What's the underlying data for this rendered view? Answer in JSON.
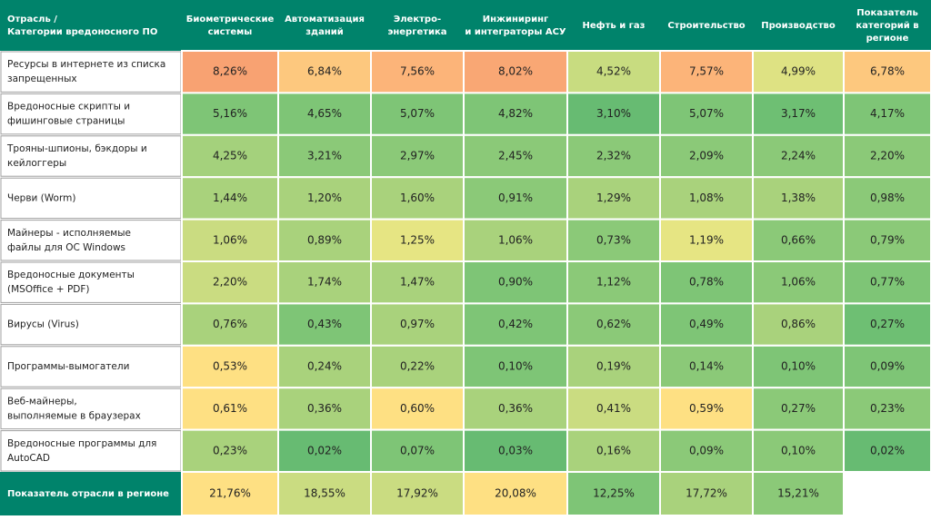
{
  "chart_data": {
    "type": "heatmap",
    "corner_header": [
      "Отрасль /",
      "Категории вредоносного ПО"
    ],
    "columns": [
      [
        "Биометрические",
        "системы"
      ],
      [
        "Автоматизация",
        "зданий"
      ],
      [
        "Электро-",
        "энергетика"
      ],
      [
        "Инжиниринг",
        "и интеграторы АСУ"
      ],
      [
        "Нефть и газ"
      ],
      [
        "Строительство"
      ],
      [
        "Производство"
      ],
      [
        "Показатель",
        "категорий в",
        "регионе"
      ]
    ],
    "rows": [
      {
        "label": [
          "Ресурсы в интернете из списка",
          "запрещенных"
        ],
        "values": [
          "8,26%",
          "6,84%",
          "7,56%",
          "8,02%",
          "4,52%",
          "7,57%",
          "4,99%",
          "6,78%"
        ],
        "colors": [
          "#f8a272",
          "#fdc87e",
          "#fcb479",
          "#f9a774",
          "#c8dc80",
          "#fcb479",
          "#dee283",
          "#fdc87e"
        ]
      },
      {
        "label": [
          "Вредоносные скрипты и",
          "фишинговые страницы"
        ],
        "values": [
          "5,16%",
          "4,65%",
          "5,07%",
          "4,82%",
          "3,10%",
          "5,07%",
          "3,17%",
          "4,17%"
        ],
        "colors": [
          "#7ec576",
          "#7ec576",
          "#7ec576",
          "#7ec576",
          "#67bb72",
          "#7ec576",
          "#6ebf73",
          "#7ec576"
        ]
      },
      {
        "label": [
          "Трояны-шпионы, бэкдоры и",
          "кейлоггеры"
        ],
        "values": [
          "4,25%",
          "3,21%",
          "2,97%",
          "2,45%",
          "2,32%",
          "2,09%",
          "2,24%",
          "2,20%"
        ],
        "colors": [
          "#a4d17c",
          "#8bc978",
          "#8bc978",
          "#8bc978",
          "#8bc978",
          "#8bc978",
          "#8bc978",
          "#8bc978"
        ]
      },
      {
        "label": [
          "Черви (Worm)"
        ],
        "values": [
          "1,44%",
          "1,20%",
          "1,60%",
          "0,91%",
          "1,29%",
          "1,08%",
          "1,38%",
          "0,98%"
        ],
        "colors": [
          "#a9d27c",
          "#a9d27c",
          "#a9d27c",
          "#8bc978",
          "#a9d27c",
          "#a9d27c",
          "#a9d27c",
          "#8bc978"
        ]
      },
      {
        "label": [
          "Майнеры - исполняемые",
          "файлы для ОС Windows"
        ],
        "values": [
          "1,06%",
          "0,89%",
          "1,25%",
          "1,06%",
          "0,73%",
          "1,19%",
          "0,66%",
          "0,79%"
        ],
        "colors": [
          "#cadc81",
          "#a9d27c",
          "#e6e583",
          "#a9d27c",
          "#8bc978",
          "#e6e583",
          "#8bc978",
          "#8bc978"
        ]
      },
      {
        "label": [
          "Вредоносные документы",
          "(MSOffice + PDF)"
        ],
        "values": [
          "2,20%",
          "1,74%",
          "1,47%",
          "0,90%",
          "1,12%",
          "0,78%",
          "1,06%",
          "0,77%"
        ],
        "colors": [
          "#cadc81",
          "#a9d27c",
          "#a9d27c",
          "#7ec576",
          "#8bc978",
          "#7ec576",
          "#8bc978",
          "#7ec576"
        ]
      },
      {
        "label": [
          "Вирусы (Virus)"
        ],
        "values": [
          "0,76%",
          "0,43%",
          "0,97%",
          "0,42%",
          "0,62%",
          "0,49%",
          "0,86%",
          "0,27%"
        ],
        "colors": [
          "#a9d27c",
          "#7ec576",
          "#a9d27c",
          "#7ec576",
          "#8bc978",
          "#7ec576",
          "#a9d27c",
          "#6ebf73"
        ]
      },
      {
        "label": [
          "Программы-вымогатели"
        ],
        "values": [
          "0,53%",
          "0,24%",
          "0,22%",
          "0,10%",
          "0,19%",
          "0,14%",
          "0,10%",
          "0,09%"
        ],
        "colors": [
          "#fee083",
          "#a9d27c",
          "#a9d27c",
          "#7ec576",
          "#a9d27c",
          "#8bc978",
          "#7ec576",
          "#7ec576"
        ]
      },
      {
        "label": [
          "Веб-майнеры,",
          "выполняемые в браузерах"
        ],
        "values": [
          "0,61%",
          "0,36%",
          "0,60%",
          "0,36%",
          "0,41%",
          "0,59%",
          "0,27%",
          "0,23%"
        ],
        "colors": [
          "#fee083",
          "#a9d27c",
          "#fee083",
          "#a9d27c",
          "#cadc81",
          "#fee083",
          "#8bc978",
          "#8bc978"
        ]
      },
      {
        "label": [
          "Вредоносные программы для",
          "AutoCAD"
        ],
        "values": [
          "0,23%",
          "0,02%",
          "0,07%",
          "0,03%",
          "0,16%",
          "0,09%",
          "0,10%",
          "0,02%"
        ],
        "colors": [
          "#a9d27c",
          "#67bb72",
          "#7ec576",
          "#67bb72",
          "#a9d27c",
          "#8bc978",
          "#8bc978",
          "#67bb72"
        ]
      }
    ],
    "footer": {
      "label": "Показатель отрасли в регионе",
      "values": [
        "21,76%",
        "18,55%",
        "17,92%",
        "20,08%",
        "12,25%",
        "17,72%",
        "15,21%",
        ""
      ],
      "colors": [
        "#fee083",
        "#cadc81",
        "#cadc81",
        "#fee083",
        "#7ec576",
        "#a9d27c",
        "#8bc978",
        "#ffffff"
      ]
    }
  },
  "colors": {
    "header_bg": "#00836b",
    "border": "#ffffff",
    "label_bg": "#ffffff",
    "label_border": "#a0a0a0"
  }
}
